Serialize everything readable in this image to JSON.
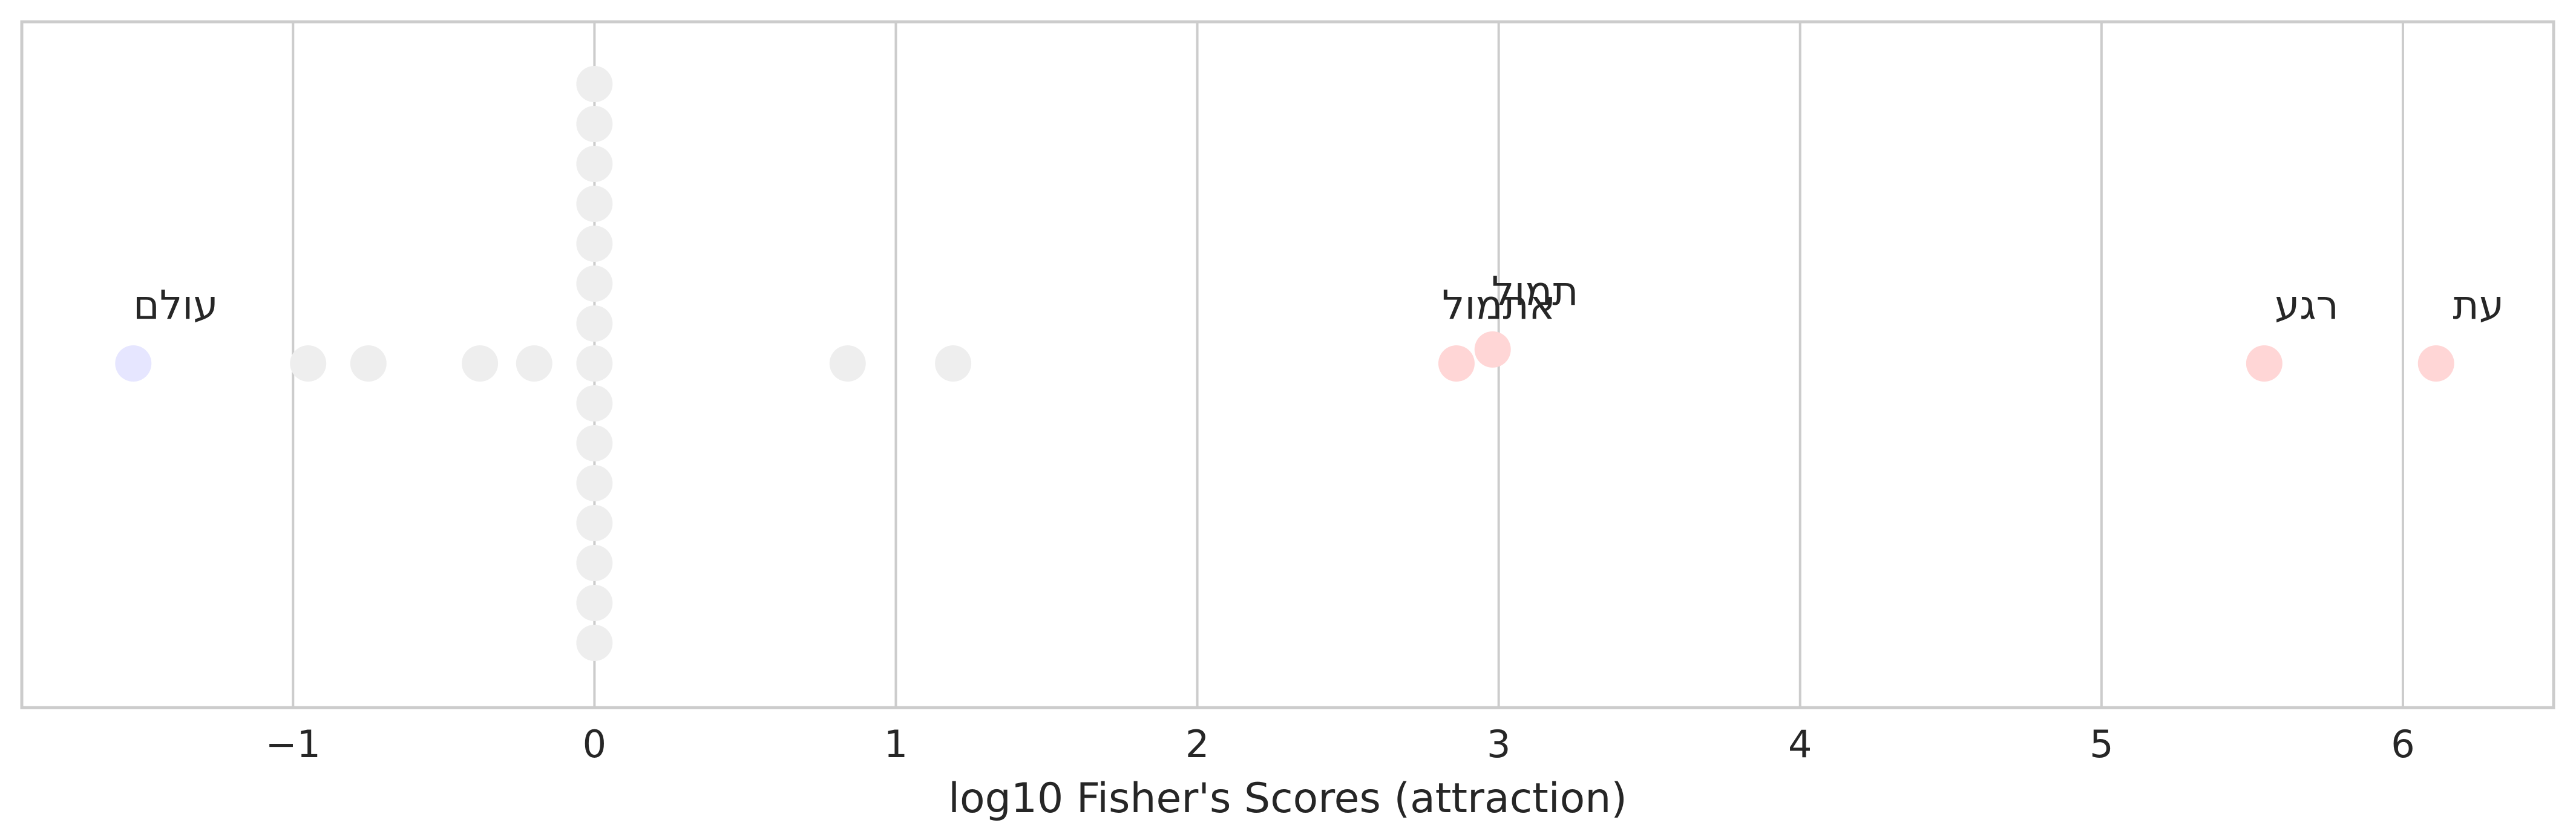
{
  "chart_data": {
    "type": "scatter",
    "title": "",
    "xlabel": "log10 Fisher's Scores (attraction)",
    "ylabel": "",
    "xlim": [
      -1.9,
      6.5
    ],
    "xticks": [
      -1,
      0,
      1,
      2,
      3,
      4,
      5,
      6
    ],
    "xtick_labels": [
      "−1",
      "0",
      "1",
      "2",
      "3",
      "4",
      "5",
      "6"
    ],
    "grid": "vertical",
    "colors": {
      "repulsion": "#e6e6ff",
      "neutral": "#eeeeee",
      "attraction": "#ffd6d6",
      "grid": "#cccccc",
      "text": "#262626"
    },
    "points": [
      {
        "x": -1.53,
        "lane": 0,
        "kind": "repulsion",
        "label": "עולם"
      },
      {
        "x": -0.95,
        "lane": 0,
        "kind": "neutral"
      },
      {
        "x": -0.75,
        "lane": 0,
        "kind": "neutral"
      },
      {
        "x": -0.38,
        "lane": 0,
        "kind": "neutral"
      },
      {
        "x": -0.2,
        "lane": 0,
        "kind": "neutral"
      },
      {
        "x": 0.0,
        "lane": 0,
        "kind": "neutral"
      },
      {
        "x": 0.0,
        "lane": 1,
        "kind": "neutral"
      },
      {
        "x": 0.0,
        "lane": 2,
        "kind": "neutral"
      },
      {
        "x": 0.0,
        "lane": 3,
        "kind": "neutral"
      },
      {
        "x": 0.0,
        "lane": 4,
        "kind": "neutral"
      },
      {
        "x": 0.0,
        "lane": 5,
        "kind": "neutral"
      },
      {
        "x": 0.0,
        "lane": 6,
        "kind": "neutral"
      },
      {
        "x": 0.0,
        "lane": 7,
        "kind": "neutral"
      },
      {
        "x": 0.0,
        "lane": -1,
        "kind": "neutral"
      },
      {
        "x": 0.0,
        "lane": -2,
        "kind": "neutral"
      },
      {
        "x": 0.0,
        "lane": -3,
        "kind": "neutral"
      },
      {
        "x": 0.0,
        "lane": -4,
        "kind": "neutral"
      },
      {
        "x": 0.0,
        "lane": -5,
        "kind": "neutral"
      },
      {
        "x": 0.0,
        "lane": -6,
        "kind": "neutral"
      },
      {
        "x": 0.0,
        "lane": -7,
        "kind": "neutral"
      },
      {
        "x": 0.84,
        "lane": 0,
        "kind": "neutral"
      },
      {
        "x": 1.19,
        "lane": 0,
        "kind": "neutral"
      },
      {
        "x": 2.86,
        "lane": 0,
        "kind": "attraction",
        "label": "אתמול"
      },
      {
        "x": 2.98,
        "lane": 0.35,
        "kind": "attraction",
        "label": "תמול"
      },
      {
        "x": 5.54,
        "lane": 0,
        "kind": "attraction",
        "label": "רגע"
      },
      {
        "x": 6.11,
        "lane": 0,
        "kind": "attraction",
        "label": "עת"
      }
    ]
  }
}
